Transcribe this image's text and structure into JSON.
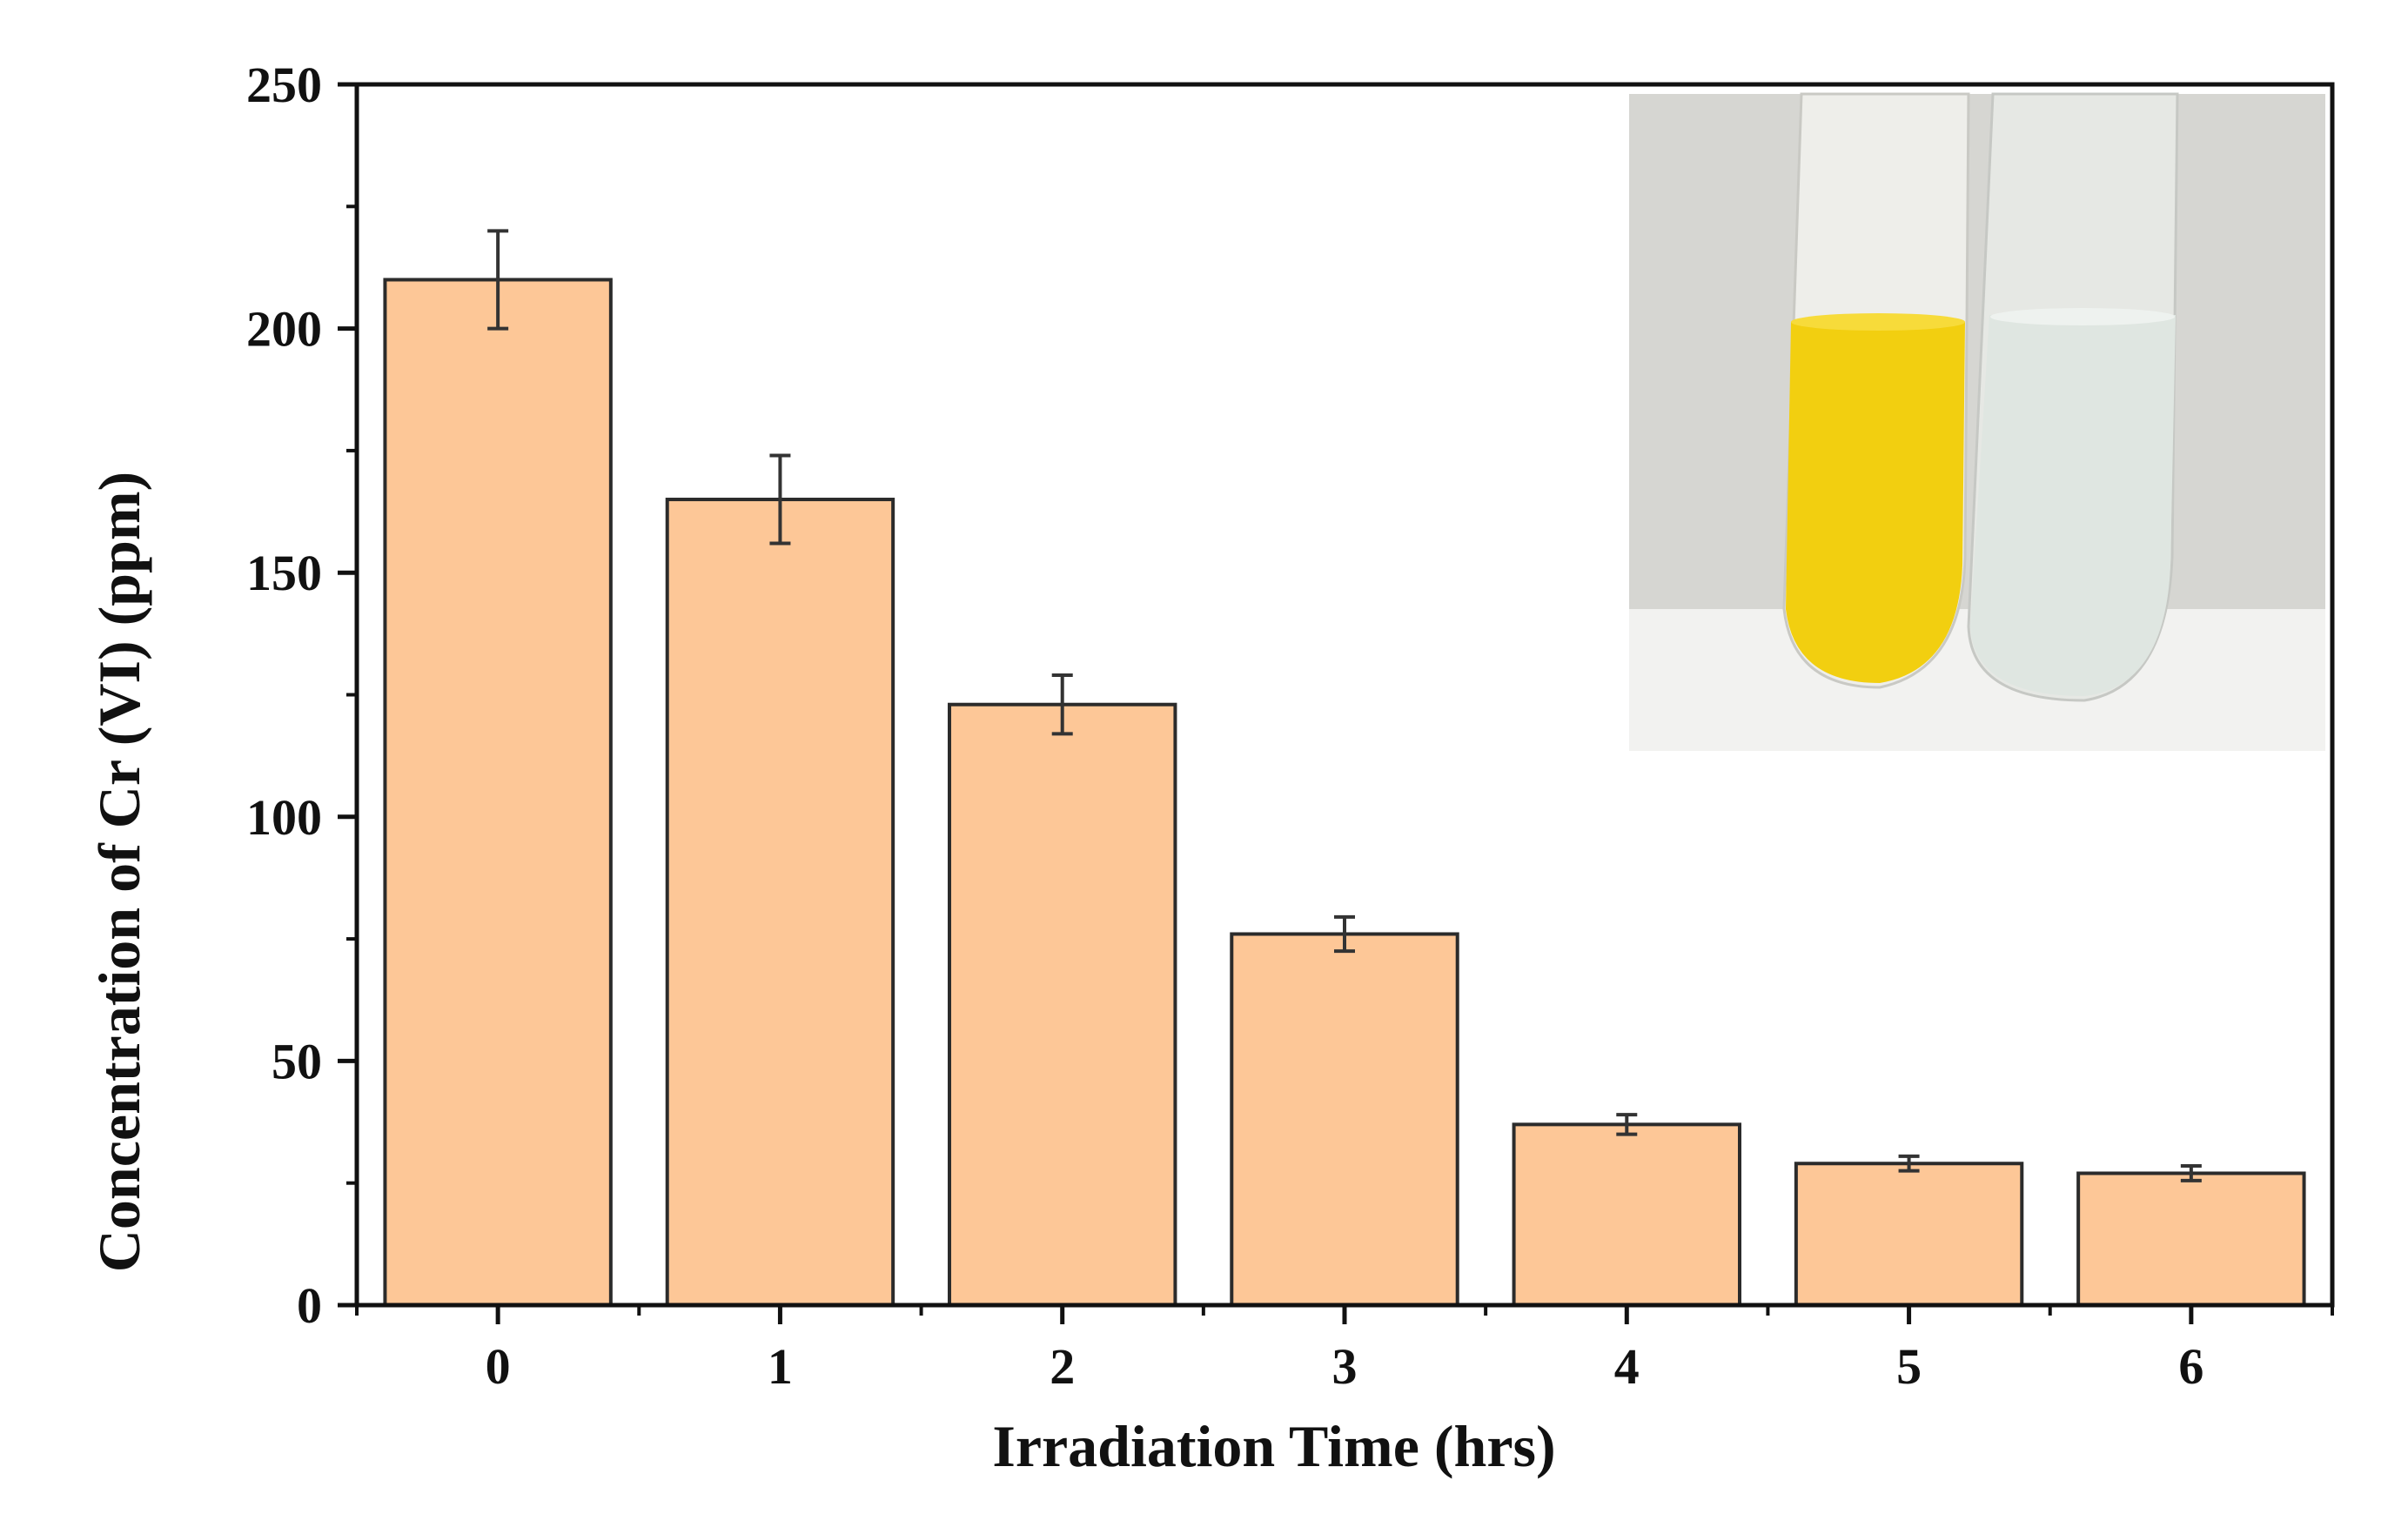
{
  "chart_data": {
    "type": "bar",
    "title": "",
    "xlabel": "Irradiation Time (hrs)",
    "ylabel": "Concentration of Cr (VI) (ppm)",
    "categories": [
      "0",
      "1",
      "2",
      "3",
      "4",
      "5",
      "6"
    ],
    "values": [
      210,
      165,
      123,
      76,
      37,
      29,
      27
    ],
    "error": [
      10,
      9,
      6,
      3.5,
      2,
      1.5,
      1.5
    ],
    "ylim": [
      0,
      250
    ],
    "yticks": [
      "0",
      "50",
      "100",
      "150",
      "200",
      "250"
    ],
    "ytick_values": [
      0,
      50,
      100,
      150,
      200,
      250
    ],
    "grid": false,
    "legend": "none",
    "colors": {
      "bar_fill": "#FDC797",
      "bar_stroke": "#2b2b2b",
      "error_bar": "#333333",
      "axis": "#111111"
    },
    "inset": {
      "type": "photo",
      "subject": "test tubes",
      "position": "top-right",
      "colors": {
        "background": "#d6d6d2",
        "surface": "#f2f2f0",
        "liquid_left": "#f2cf10",
        "liquid_right": "#dfe6e1"
      }
    }
  }
}
